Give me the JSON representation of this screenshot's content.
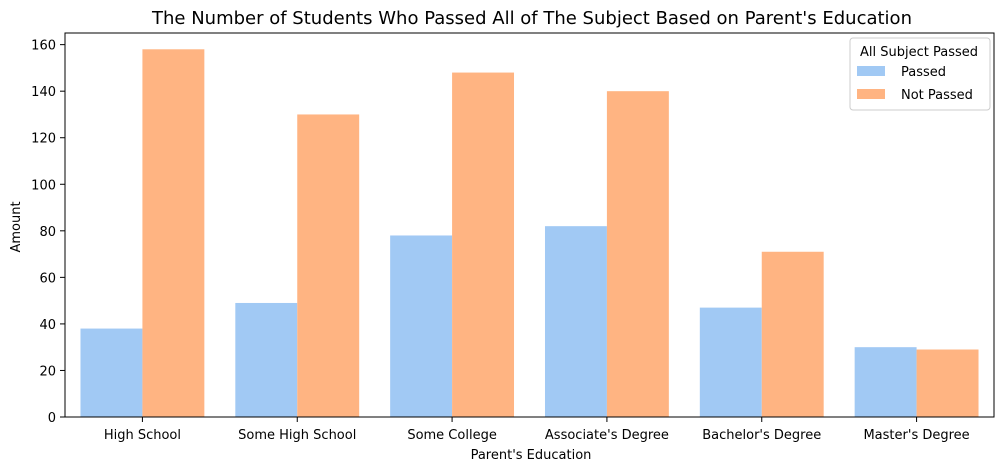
{
  "chart_data": {
    "type": "bar",
    "title": "The Number of Students Who Passed All of The Subject Based on Parent's Education",
    "xlabel": "Parent's Education",
    "ylabel": "Amount",
    "ylim": [
      0,
      165
    ],
    "yticks": [
      0,
      20,
      40,
      60,
      80,
      100,
      120,
      140,
      160
    ],
    "categories": [
      "High School",
      "Some High School",
      "Some College",
      "Associate's Degree",
      "Bachelor's Degree",
      "Master's Degree"
    ],
    "series": [
      {
        "name": "Passed",
        "color": "#a1c9f4",
        "values": [
          38,
          49,
          78,
          82,
          47,
          30
        ]
      },
      {
        "name": "Not Passed",
        "color": "#ffb482",
        "values": [
          158,
          130,
          148,
          140,
          71,
          29
        ]
      }
    ],
    "legend": {
      "title": "All Subject Passed",
      "placement": "top-right"
    },
    "grid": false
  }
}
